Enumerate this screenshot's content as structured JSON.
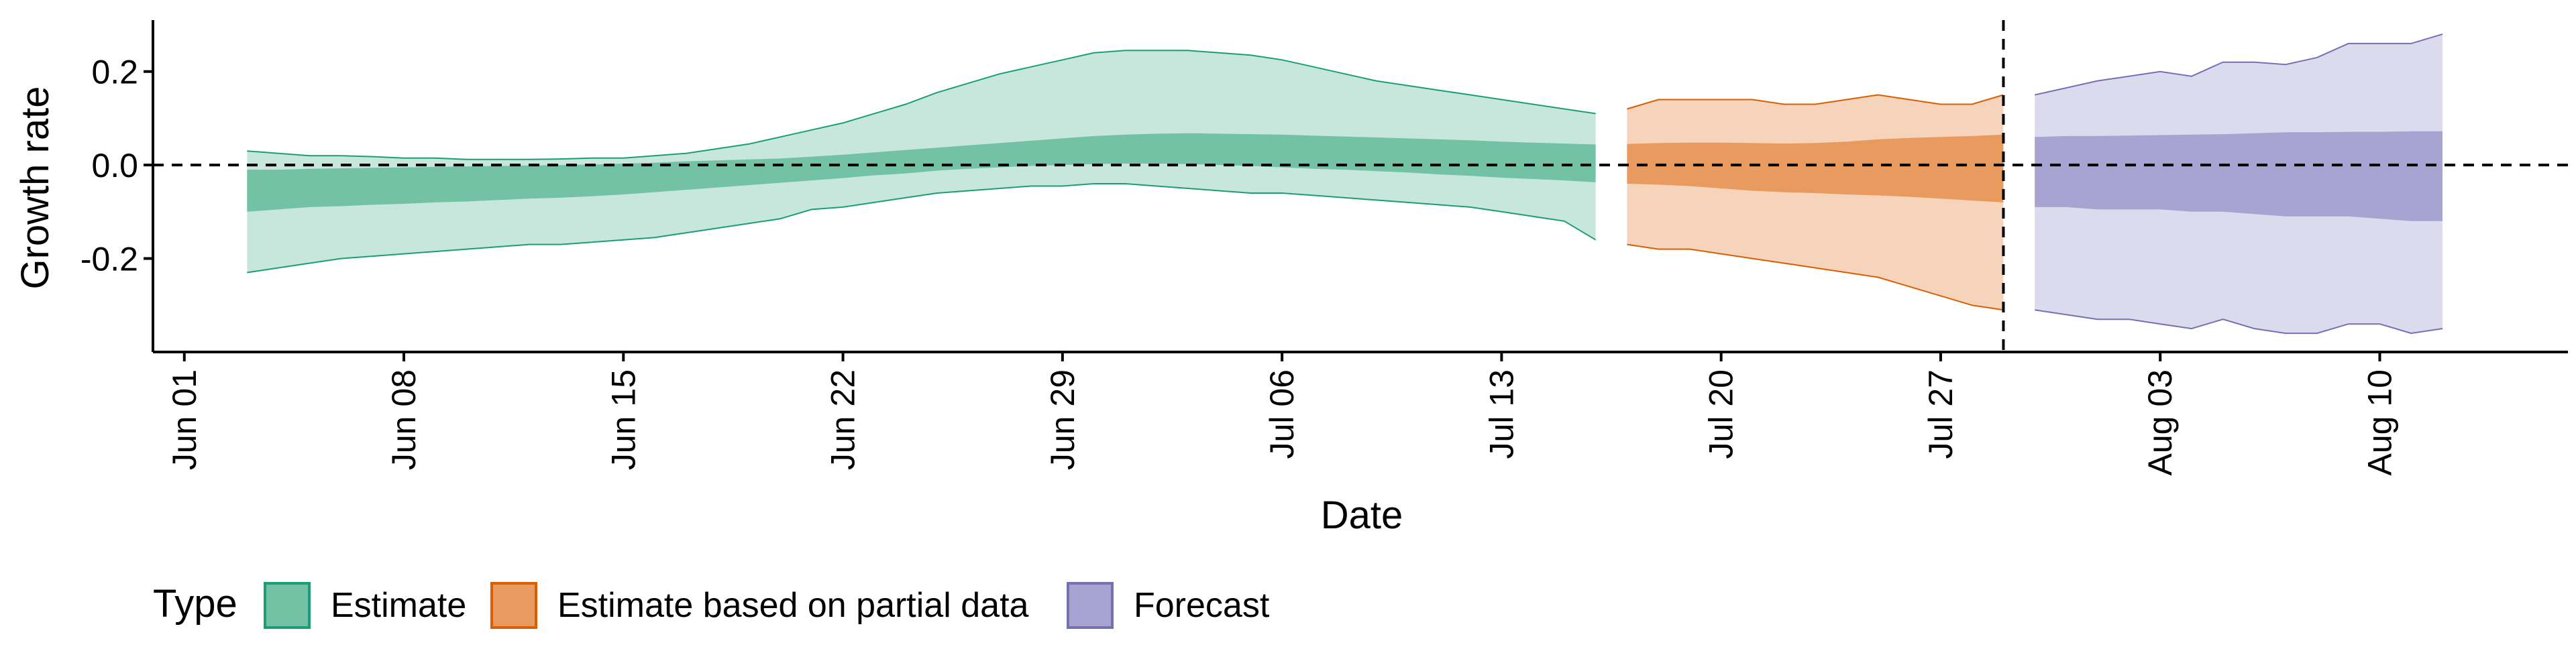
{
  "chart_data": {
    "type": "area",
    "title": "",
    "xlabel": "Date",
    "ylabel": "Growth rate",
    "x_ticks": [
      "Jun 01",
      "Jun 08",
      "Jun 15",
      "Jun 22",
      "Jun 29",
      "Jul 06",
      "Jul 13",
      "Jul 20",
      "Jul 27",
      "Aug 03",
      "Aug 10"
    ],
    "x_tick_dates": [
      "2020-06-01",
      "2020-06-08",
      "2020-06-15",
      "2020-06-22",
      "2020-06-29",
      "2020-07-06",
      "2020-07-13",
      "2020-07-20",
      "2020-07-27",
      "2020-08-03",
      "2020-08-10"
    ],
    "xlim": [
      "2020-05-31",
      "2020-08-16"
    ],
    "y_ticks": [
      "0.2",
      "0.0",
      "-0.2"
    ],
    "y_tick_values": [
      0.2,
      0.0,
      -0.2
    ],
    "ylim": [
      -0.4,
      0.31
    ],
    "grid": false,
    "reference_lines": [
      {
        "orientation": "horizontal",
        "y": 0,
        "style": "dashed"
      },
      {
        "orientation": "vertical",
        "x": "2020-07-29",
        "style": "dashed"
      }
    ],
    "legend": {
      "title": "Type",
      "position": "bottom-left",
      "entries": [
        {
          "label": "Estimate",
          "fill": "#73c2a6",
          "stroke": "#1b9e77"
        },
        {
          "label": "Estimate based on partial data",
          "fill": "#e99a5e",
          "stroke": "#d95f02"
        },
        {
          "label": "Forecast",
          "fill": "#a8a4d2",
          "stroke": "#7570b3"
        }
      ]
    },
    "series": [
      {
        "name": "Estimate",
        "fill_outer": "#c7e7dc",
        "fill_inner": "#73c2a6",
        "stroke": "#1b9e77",
        "x": [
          "2020-06-03",
          "2020-06-04",
          "2020-06-05",
          "2020-06-06",
          "2020-06-07",
          "2020-06-08",
          "2020-06-09",
          "2020-06-10",
          "2020-06-11",
          "2020-06-12",
          "2020-06-13",
          "2020-06-14",
          "2020-06-15",
          "2020-06-16",
          "2020-06-17",
          "2020-06-18",
          "2020-06-19",
          "2020-06-20",
          "2020-06-21",
          "2020-06-22",
          "2020-06-23",
          "2020-06-24",
          "2020-06-25",
          "2020-06-26",
          "2020-06-27",
          "2020-06-28",
          "2020-06-29",
          "2020-06-30",
          "2020-07-01",
          "2020-07-02",
          "2020-07-03",
          "2020-07-04",
          "2020-07-05",
          "2020-07-06",
          "2020-07-07",
          "2020-07-08",
          "2020-07-09",
          "2020-07-10",
          "2020-07-11",
          "2020-07-12",
          "2020-07-13",
          "2020-07-14",
          "2020-07-15",
          "2020-07-16"
        ],
        "lower_90": [
          -0.23,
          -0.22,
          -0.21,
          -0.2,
          -0.195,
          -0.19,
          -0.185,
          -0.18,
          -0.175,
          -0.17,
          -0.17,
          -0.165,
          -0.16,
          -0.155,
          -0.145,
          -0.135,
          -0.125,
          -0.115,
          -0.095,
          -0.09,
          -0.08,
          -0.07,
          -0.06,
          -0.055,
          -0.05,
          -0.045,
          -0.045,
          -0.04,
          -0.04,
          -0.045,
          -0.05,
          -0.055,
          -0.06,
          -0.06,
          -0.065,
          -0.07,
          -0.075,
          -0.08,
          -0.085,
          -0.09,
          -0.1,
          -0.11,
          -0.12,
          -0.16
        ],
        "lower_50": [
          -0.1,
          -0.095,
          -0.09,
          -0.088,
          -0.085,
          -0.083,
          -0.08,
          -0.078,
          -0.075,
          -0.072,
          -0.07,
          -0.067,
          -0.063,
          -0.058,
          -0.053,
          -0.048,
          -0.043,
          -0.038,
          -0.033,
          -0.028,
          -0.022,
          -0.018,
          -0.012,
          -0.008,
          -0.005,
          -0.002,
          0.0,
          0.002,
          0.003,
          0.003,
          0.002,
          0.0,
          -0.002,
          -0.005,
          -0.008,
          -0.01,
          -0.013,
          -0.016,
          -0.02,
          -0.023,
          -0.027,
          -0.03,
          -0.033,
          -0.037
        ],
        "upper_50": [
          -0.01,
          -0.01,
          -0.008,
          -0.007,
          -0.006,
          -0.005,
          -0.004,
          -0.003,
          -0.002,
          -0.001,
          0.0,
          0.001,
          0.003,
          0.005,
          0.008,
          0.01,
          0.012,
          0.014,
          0.018,
          0.022,
          0.027,
          0.032,
          0.037,
          0.042,
          0.047,
          0.052,
          0.057,
          0.062,
          0.065,
          0.067,
          0.068,
          0.067,
          0.066,
          0.065,
          0.063,
          0.061,
          0.059,
          0.057,
          0.055,
          0.053,
          0.05,
          0.048,
          0.046,
          0.044
        ],
        "upper_90": [
          0.03,
          0.025,
          0.02,
          0.02,
          0.018,
          0.015,
          0.015,
          0.012,
          0.012,
          0.012,
          0.013,
          0.015,
          0.015,
          0.02,
          0.025,
          0.035,
          0.045,
          0.06,
          0.075,
          0.09,
          0.11,
          0.13,
          0.155,
          0.175,
          0.195,
          0.21,
          0.225,
          0.24,
          0.245,
          0.245,
          0.245,
          0.24,
          0.235,
          0.225,
          0.21,
          0.195,
          0.18,
          0.17,
          0.16,
          0.15,
          0.14,
          0.13,
          0.12,
          0.11
        ]
      },
      {
        "name": "Estimate based on partial data",
        "fill_outer": "#f5d4bb",
        "fill_inner": "#e99a5e",
        "stroke": "#d95f02",
        "x": [
          "2020-07-17",
          "2020-07-18",
          "2020-07-19",
          "2020-07-20",
          "2020-07-21",
          "2020-07-22",
          "2020-07-23",
          "2020-07-24",
          "2020-07-25",
          "2020-07-26",
          "2020-07-27",
          "2020-07-28",
          "2020-07-29"
        ],
        "lower_90": [
          -0.17,
          -0.18,
          -0.18,
          -0.19,
          -0.2,
          -0.21,
          -0.22,
          -0.23,
          -0.24,
          -0.26,
          -0.28,
          -0.3,
          -0.31
        ],
        "lower_50": [
          -0.04,
          -0.042,
          -0.045,
          -0.05,
          -0.055,
          -0.058,
          -0.06,
          -0.063,
          -0.065,
          -0.068,
          -0.072,
          -0.076,
          -0.08
        ],
        "upper_50": [
          0.045,
          0.047,
          0.048,
          0.048,
          0.047,
          0.046,
          0.047,
          0.05,
          0.055,
          0.058,
          0.06,
          0.062,
          0.065
        ],
        "upper_90": [
          0.12,
          0.14,
          0.14,
          0.14,
          0.14,
          0.13,
          0.13,
          0.14,
          0.15,
          0.14,
          0.13,
          0.13,
          0.15
        ]
      },
      {
        "name": "Forecast",
        "fill_outer": "#dcdbed",
        "fill_inner": "#a8a4d2",
        "stroke": "#7570b3",
        "x": [
          "2020-07-30",
          "2020-07-31",
          "2020-08-01",
          "2020-08-02",
          "2020-08-03",
          "2020-08-04",
          "2020-08-05",
          "2020-08-06",
          "2020-08-07",
          "2020-08-08",
          "2020-08-09",
          "2020-08-10",
          "2020-08-11",
          "2020-08-12"
        ],
        "lower_90": [
          -0.31,
          -0.32,
          -0.33,
          -0.33,
          -0.34,
          -0.35,
          -0.33,
          -0.35,
          -0.36,
          -0.36,
          -0.34,
          -0.34,
          -0.36,
          -0.35
        ],
        "lower_50": [
          -0.09,
          -0.09,
          -0.095,
          -0.095,
          -0.095,
          -0.1,
          -0.1,
          -0.105,
          -0.11,
          -0.11,
          -0.11,
          -0.115,
          -0.12,
          -0.12
        ],
        "upper_50": [
          0.06,
          0.062,
          0.062,
          0.063,
          0.064,
          0.065,
          0.066,
          0.068,
          0.07,
          0.07,
          0.071,
          0.071,
          0.072,
          0.072
        ],
        "upper_90": [
          0.15,
          0.165,
          0.18,
          0.19,
          0.2,
          0.19,
          0.22,
          0.22,
          0.215,
          0.23,
          0.26,
          0.26,
          0.26,
          0.28
        ]
      }
    ]
  }
}
